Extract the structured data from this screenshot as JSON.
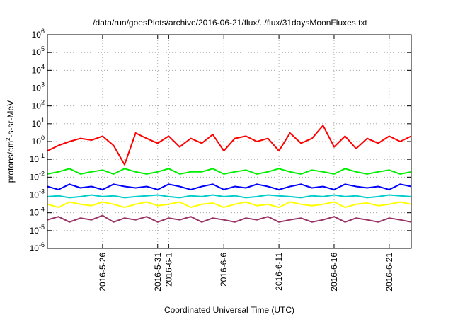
{
  "chart_data": {
    "type": "line",
    "title": "/data/run/goesPlots/archive/2016-06-21/flux/../flux/31daysMoonFluxes.txt",
    "xlabel": "Coordinated Universal Time (UTC)",
    "ylabel_parts": [
      "protons/cm",
      "2",
      "-s-sr-MeV"
    ],
    "y_scale": "log",
    "ylim": [
      1e-06,
      1000000.0
    ],
    "y_ticks": [
      {
        "base": "10",
        "exp": "-6",
        "value": 1e-06
      },
      {
        "base": "10",
        "exp": "-5",
        "value": 1e-05
      },
      {
        "base": "10",
        "exp": "-4",
        "value": 0.0001
      },
      {
        "base": "10",
        "exp": "-3",
        "value": 0.001
      },
      {
        "base": "10",
        "exp": "-2",
        "value": 0.01
      },
      {
        "base": "10",
        "exp": "-1",
        "value": 0.1
      },
      {
        "base": "10",
        "exp": "0",
        "value": 1
      },
      {
        "base": "10",
        "exp": "1",
        "value": 10
      },
      {
        "base": "10",
        "exp": "2",
        "value": 100
      },
      {
        "base": "10",
        "exp": "3",
        "value": 1000
      },
      {
        "base": "10",
        "exp": "4",
        "value": 10000
      },
      {
        "base": "10",
        "exp": "5",
        "value": 100000
      },
      {
        "base": "10",
        "exp": "6",
        "value": 1000000
      }
    ],
    "xlim": [
      "2016-05-21",
      "2016-06-23"
    ],
    "x_ticks": [
      {
        "date": "2016-05-26",
        "labels": [
          "2016-5-26"
        ]
      },
      {
        "date": "2016-05-31",
        "labels": [
          "2016-5-31"
        ]
      },
      {
        "date": "2016-06-01",
        "labels": [
          "2016-6-1"
        ]
      },
      {
        "date": "2016-06-06",
        "labels": [
          "2016-6-6"
        ]
      },
      {
        "date": "2016-06-11",
        "labels": [
          "2016-6-11"
        ]
      },
      {
        "date": "2016-06-16",
        "labels": [
          "2016-6-16"
        ]
      },
      {
        "date": "2016-06-21",
        "labels": [
          "2016-6-21"
        ]
      }
    ],
    "grid": true,
    "series": [
      {
        "color": "#ff0000",
        "x": [
          "2016-05-21",
          "2016-05-22",
          "2016-05-23",
          "2016-05-24",
          "2016-05-25",
          "2016-05-26",
          "2016-05-27",
          "2016-05-28",
          "2016-05-29",
          "2016-05-30",
          "2016-05-31",
          "2016-06-01",
          "2016-06-02",
          "2016-06-03",
          "2016-06-04",
          "2016-06-05",
          "2016-06-06",
          "2016-06-07",
          "2016-06-08",
          "2016-06-09",
          "2016-06-10",
          "2016-06-11",
          "2016-06-12",
          "2016-06-13",
          "2016-06-14",
          "2016-06-15",
          "2016-06-16",
          "2016-06-17",
          "2016-06-18",
          "2016-06-19",
          "2016-06-20",
          "2016-06-21",
          "2016-06-22",
          "2016-06-23"
        ],
        "y": [
          0.3,
          0.6,
          1.0,
          1.5,
          1.2,
          2.0,
          0.6,
          0.05,
          3.0,
          1.5,
          0.8,
          2.0,
          0.5,
          1.5,
          0.8,
          2.5,
          0.3,
          1.5,
          2.0,
          1.0,
          1.5,
          0.3,
          3.0,
          0.8,
          1.5,
          8.0,
          0.5,
          2.0,
          0.4,
          1.5,
          0.8,
          2.0,
          1.0,
          2.0
        ]
      },
      {
        "color": "#00ee00",
        "x": [
          "2016-05-21",
          "2016-05-22",
          "2016-05-23",
          "2016-05-24",
          "2016-05-25",
          "2016-05-26",
          "2016-05-27",
          "2016-05-28",
          "2016-05-29",
          "2016-05-30",
          "2016-05-31",
          "2016-06-01",
          "2016-06-02",
          "2016-06-03",
          "2016-06-04",
          "2016-06-05",
          "2016-06-06",
          "2016-06-07",
          "2016-06-08",
          "2016-06-09",
          "2016-06-10",
          "2016-06-11",
          "2016-06-12",
          "2016-06-13",
          "2016-06-14",
          "2016-06-15",
          "2016-06-16",
          "2016-06-17",
          "2016-06-18",
          "2016-06-19",
          "2016-06-20",
          "2016-06-21",
          "2016-06-22",
          "2016-06-23"
        ],
        "y": [
          0.015,
          0.02,
          0.03,
          0.015,
          0.02,
          0.025,
          0.015,
          0.03,
          0.02,
          0.015,
          0.02,
          0.03,
          0.015,
          0.02,
          0.02,
          0.03,
          0.015,
          0.02,
          0.025,
          0.015,
          0.02,
          0.03,
          0.02,
          0.015,
          0.025,
          0.02,
          0.015,
          0.03,
          0.02,
          0.015,
          0.02,
          0.025,
          0.015,
          0.02
        ]
      },
      {
        "color": "#0000ff",
        "x": [
          "2016-05-21",
          "2016-05-22",
          "2016-05-23",
          "2016-05-24",
          "2016-05-25",
          "2016-05-26",
          "2016-05-27",
          "2016-05-28",
          "2016-05-29",
          "2016-05-30",
          "2016-05-31",
          "2016-06-01",
          "2016-06-02",
          "2016-06-03",
          "2016-06-04",
          "2016-06-05",
          "2016-06-06",
          "2016-06-07",
          "2016-06-08",
          "2016-06-09",
          "2016-06-10",
          "2016-06-11",
          "2016-06-12",
          "2016-06-13",
          "2016-06-14",
          "2016-06-15",
          "2016-06-16",
          "2016-06-17",
          "2016-06-18",
          "2016-06-19",
          "2016-06-20",
          "2016-06-21",
          "2016-06-22",
          "2016-06-23"
        ],
        "y": [
          0.003,
          0.002,
          0.004,
          0.0025,
          0.003,
          0.002,
          0.004,
          0.003,
          0.0025,
          0.003,
          0.002,
          0.004,
          0.003,
          0.002,
          0.003,
          0.004,
          0.002,
          0.003,
          0.0025,
          0.004,
          0.003,
          0.002,
          0.003,
          0.004,
          0.0025,
          0.003,
          0.002,
          0.004,
          0.003,
          0.0025,
          0.003,
          0.002,
          0.004,
          0.003
        ]
      },
      {
        "color": "#00cccc",
        "x": [
          "2016-05-21",
          "2016-05-22",
          "2016-05-23",
          "2016-05-24",
          "2016-05-25",
          "2016-05-26",
          "2016-05-27",
          "2016-05-28",
          "2016-05-29",
          "2016-05-30",
          "2016-05-31",
          "2016-06-01",
          "2016-06-02",
          "2016-06-03",
          "2016-06-04",
          "2016-06-05",
          "2016-06-06",
          "2016-06-07",
          "2016-06-08",
          "2016-06-09",
          "2016-06-10",
          "2016-06-11",
          "2016-06-12",
          "2016-06-13",
          "2016-06-14",
          "2016-06-15",
          "2016-06-16",
          "2016-06-17",
          "2016-06-18",
          "2016-06-19",
          "2016-06-20",
          "2016-06-21",
          "2016-06-22",
          "2016-06-23"
        ],
        "y": [
          0.0008,
          0.0009,
          0.0007,
          0.0008,
          0.001,
          0.0008,
          0.0009,
          0.0007,
          0.0008,
          0.0009,
          0.001,
          0.0008,
          0.0007,
          0.0009,
          0.0008,
          0.001,
          0.0008,
          0.0009,
          0.0007,
          0.0008,
          0.001,
          0.0009,
          0.0008,
          0.0007,
          0.0009,
          0.0008,
          0.001,
          0.0008,
          0.0009,
          0.0007,
          0.0008,
          0.001,
          0.0009,
          0.0008
        ]
      },
      {
        "color": "#ffff00",
        "x": [
          "2016-05-21",
          "2016-05-22",
          "2016-05-23",
          "2016-05-24",
          "2016-05-25",
          "2016-05-26",
          "2016-05-27",
          "2016-05-28",
          "2016-05-29",
          "2016-05-30",
          "2016-05-31",
          "2016-06-01",
          "2016-06-02",
          "2016-06-03",
          "2016-06-04",
          "2016-06-05",
          "2016-06-06",
          "2016-06-07",
          "2016-06-08",
          "2016-06-09",
          "2016-06-10",
          "2016-06-11",
          "2016-06-12",
          "2016-06-13",
          "2016-06-14",
          "2016-06-15",
          "2016-06-16",
          "2016-06-17",
          "2016-06-18",
          "2016-06-19",
          "2016-06-20",
          "2016-06-21",
          "2016-06-22",
          "2016-06-23"
        ],
        "y": [
          0.0003,
          0.0002,
          0.0004,
          0.0003,
          0.00025,
          0.0004,
          0.0003,
          0.0002,
          0.0003,
          0.0004,
          0.00025,
          0.0003,
          0.0004,
          0.0002,
          0.0003,
          0.00035,
          0.0002,
          0.0003,
          0.0004,
          0.00025,
          0.0003,
          0.0002,
          0.0004,
          0.0003,
          0.00025,
          0.0003,
          0.0004,
          0.0002,
          0.0003,
          0.00035,
          0.00025,
          0.0003,
          0.0004,
          0.0003
        ]
      },
      {
        "color": "#993366",
        "x": [
          "2016-05-21",
          "2016-05-22",
          "2016-05-23",
          "2016-05-24",
          "2016-05-25",
          "2016-05-26",
          "2016-05-27",
          "2016-05-28",
          "2016-05-29",
          "2016-05-30",
          "2016-05-31",
          "2016-06-01",
          "2016-06-02",
          "2016-06-03",
          "2016-06-04",
          "2016-06-05",
          "2016-06-06",
          "2016-06-07",
          "2016-06-08",
          "2016-06-09",
          "2016-06-10",
          "2016-06-11",
          "2016-06-12",
          "2016-06-13",
          "2016-06-14",
          "2016-06-15",
          "2016-06-16",
          "2016-06-17",
          "2016-06-18",
          "2016-06-19",
          "2016-06-20",
          "2016-06-21",
          "2016-06-22",
          "2016-06-23"
        ],
        "y": [
          4e-05,
          6e-05,
          3e-05,
          5e-05,
          4e-05,
          7e-05,
          3e-05,
          5e-05,
          4e-05,
          6e-05,
          3e-05,
          5e-05,
          4e-05,
          6e-05,
          3e-05,
          5e-05,
          4e-05,
          3e-05,
          5e-05,
          4e-05,
          6e-05,
          3e-05,
          4e-05,
          5e-05,
          3e-05,
          4e-05,
          6e-05,
          3e-05,
          5e-05,
          4e-05,
          3e-05,
          5e-05,
          4e-05,
          3e-05
        ]
      }
    ]
  }
}
